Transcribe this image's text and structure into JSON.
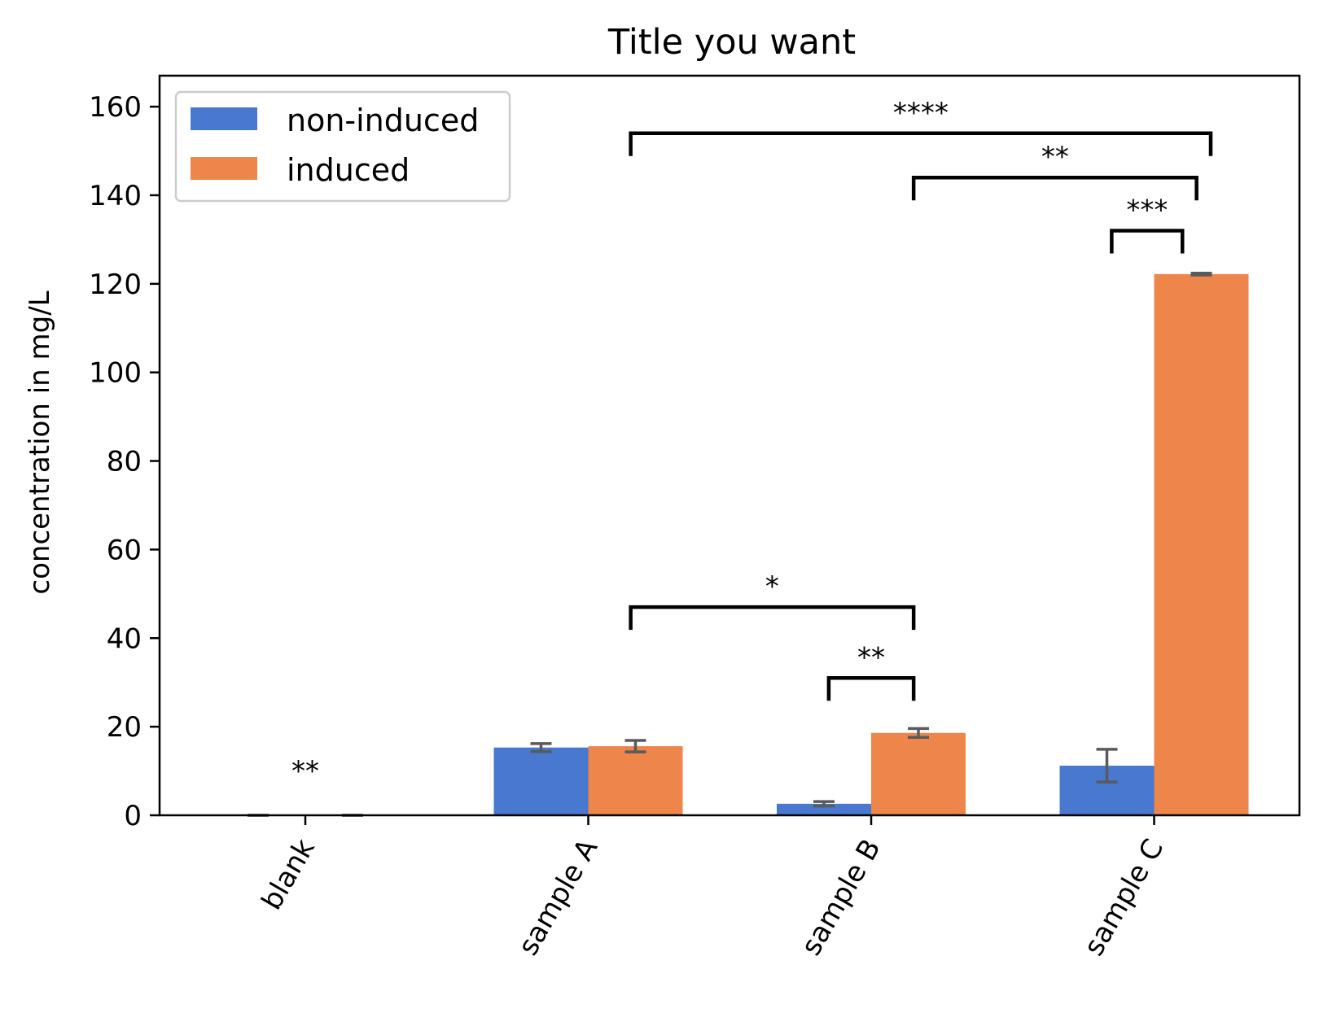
{
  "chart_data": {
    "type": "bar",
    "title": "Title you want",
    "xlabel": "",
    "ylabel": "concentration in mg/L",
    "categories": [
      "blank",
      "sample A",
      "sample B",
      "sample C"
    ],
    "series": [
      {
        "name": "non-induced",
        "color": "#4878d0",
        "values": [
          0,
          15.3,
          2.6,
          11.2
        ],
        "errors": [
          0,
          0.9,
          0.5,
          3.7
        ]
      },
      {
        "name": "induced",
        "color": "#ee854a",
        "values": [
          0,
          15.6,
          18.6,
          122.2
        ],
        "errors": [
          0,
          1.3,
          1.0,
          0.2
        ]
      }
    ],
    "ylim": [
      0,
      167
    ],
    "yticks": [
      0,
      20,
      40,
      60,
      80,
      100,
      120,
      140,
      160
    ],
    "grid": false,
    "legend": "top-left",
    "significance": [
      {
        "from": 0,
        "to": 0,
        "label": "**",
        "y": 10.5,
        "bracket": false
      },
      {
        "from": 1.15,
        "to": 2.15,
        "label": "*",
        "y": 47,
        "bracket": true
      },
      {
        "from": 1.85,
        "to": 2.15,
        "label": "**",
        "y": 31,
        "bracket": true
      },
      {
        "from": 2.85,
        "to": 3.1,
        "label": "***",
        "y": 132,
        "bracket": true
      },
      {
        "from": 2.15,
        "to": 3.15,
        "label": "**",
        "y": 144,
        "bracket": true
      },
      {
        "from": 1.15,
        "to": 3.2,
        "label": "****",
        "y": 154,
        "bracket": true
      }
    ]
  }
}
